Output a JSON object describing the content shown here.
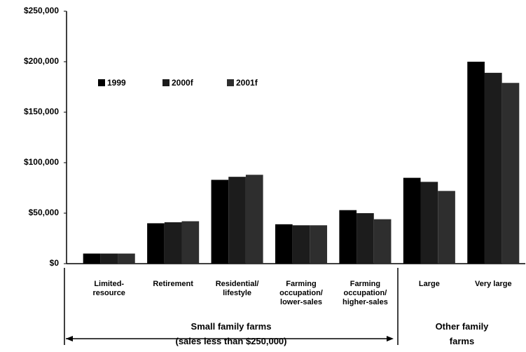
{
  "chart_data": {
    "type": "bar",
    "categories": [
      "Limited-\nresource",
      "Retirement",
      "Residential/\nlifestyle",
      "Farming\noccupation/\nlower-sales",
      "Farming\noccupation/\nhigher-sales",
      "Large",
      "Very large"
    ],
    "series": [
      {
        "name": "1999",
        "color": "#000000",
        "values": [
          10000,
          40000,
          83000,
          39000,
          53000,
          85000,
          200000
        ]
      },
      {
        "name": "2000f",
        "color": "#1c1c1c",
        "values": [
          10000,
          41000,
          86000,
          38000,
          50000,
          81000,
          189000
        ]
      },
      {
        "name": "2001f",
        "color": "#2e2e2e",
        "values": [
          10000,
          42000,
          88000,
          38000,
          44000,
          72000,
          179000
        ]
      }
    ],
    "group_labels": [
      "Small family farms\n(sales less than $250,000)",
      "Other family\nfarms"
    ],
    "ylim": [
      0,
      250000
    ],
    "yticks": [
      {
        "value": 0,
        "label": "$0"
      },
      {
        "value": 50000,
        "label": "$50,000"
      },
      {
        "value": 100000,
        "label": "$100,000"
      },
      {
        "value": 150000,
        "label": "$150,000"
      },
      {
        "value": 200000,
        "label": "$200,000"
      },
      {
        "value": 250000,
        "label": "$250,000"
      }
    ],
    "grid": false
  }
}
